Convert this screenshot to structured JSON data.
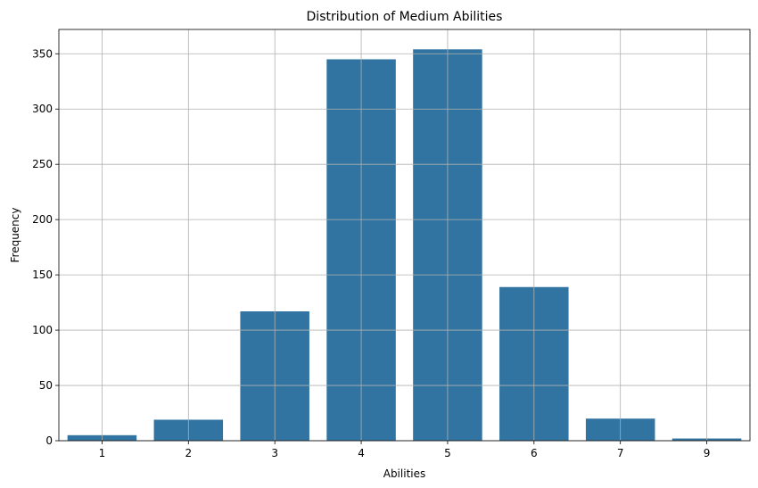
{
  "chart_data": {
    "type": "bar",
    "title": "Distribution of Medium Abilities",
    "xlabel": "Abilities",
    "ylabel": "Frequency",
    "categories": [
      "1",
      "2",
      "3",
      "4",
      "5",
      "6",
      "7",
      "9"
    ],
    "values": [
      5,
      19,
      117,
      345,
      354,
      139,
      20,
      2
    ],
    "ylim": [
      0,
      372
    ],
    "yticks": [
      0,
      50,
      100,
      150,
      200,
      250,
      300,
      350
    ],
    "grid": true,
    "bar_color": "#3274a1",
    "grid_color": "#b0b0b0"
  }
}
